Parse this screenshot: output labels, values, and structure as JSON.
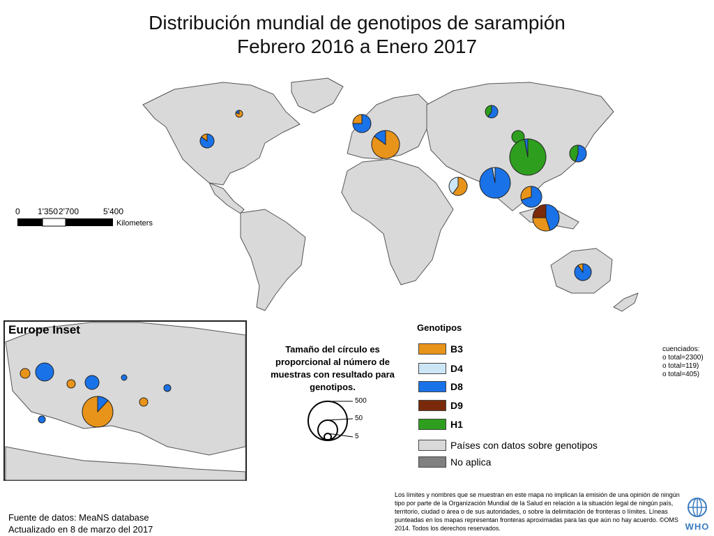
{
  "title": {
    "line1": "Distribución mundial de genotipos de sarampión",
    "line2": "Febrero 2016 a Enero 2017"
  },
  "scale_bar": {
    "ticks": [
      "0",
      "1'350",
      "2'700",
      "5'400"
    ],
    "unit": "Kilometers"
  },
  "inset": {
    "title": "Europe Inset"
  },
  "size_legend": {
    "caption": "Tamaño del círculo es proporcional al número de muestras con resultado para genotipos.",
    "values": [
      "500",
      "50",
      "5"
    ]
  },
  "genotype_legend": {
    "title": "Genotipos",
    "items": [
      {
        "label": "B3",
        "color": "#e8941a"
      },
      {
        "label": "D4",
        "color": "#cce6f6"
      },
      {
        "label": "D8",
        "color": "#1a72e8"
      },
      {
        "label": "D9",
        "color": "#7a2a0a"
      },
      {
        "label": "H1",
        "color": "#2e9e1e"
      }
    ],
    "countries_with_data": {
      "label": "Países con datos sobre genotipos",
      "color": "#d9d9d9"
    },
    "not_applicable": {
      "label": "No aplica",
      "color": "#808080"
    }
  },
  "partial_text": {
    "line1": "cuenciados:",
    "line2": "o total=2300)",
    "line3": "o total=119)",
    "line4": "o total=405)"
  },
  "source": {
    "line1": "Fuente de datos: MeaNS database",
    "line2": "Actualizado en 8 de marzo del 2017"
  },
  "disclaimer": "Los límites y nombres que se muestran en este mapa no implican la emisión de una opinión de ningún tipo por parte de la Organización Mundial de la Salud en relación a la situación legal de ningún país, territorio, ciudad o área o de sus autoridades, o sobre la delimitación de fronteras o límites. Líneas punteadas en los mapas representan fronteras aproximadas para las que aún no hay acuerdo. ©OMS 2014. Todos los derechos reservados.",
  "who_logo": {
    "text": "WHO",
    "icon": "who-emblem-icon"
  },
  "map_pies": [
    {
      "place": "Canada",
      "slices": [
        {
          "genotype": "B3",
          "fraction": 0.8
        },
        {
          "genotype": "D8",
          "fraction": 0.2
        }
      ]
    },
    {
      "place": "United States",
      "slices": [
        {
          "genotype": "D8",
          "fraction": 0.85
        },
        {
          "genotype": "B3",
          "fraction": 0.15
        }
      ]
    },
    {
      "place": "United Kingdom",
      "slices": [
        {
          "genotype": "D8",
          "fraction": 0.75
        },
        {
          "genotype": "B3",
          "fraction": 0.25
        }
      ]
    },
    {
      "place": "Italy",
      "slices": [
        {
          "genotype": "B3",
          "fraction": 0.85
        },
        {
          "genotype": "D8",
          "fraction": 0.15
        }
      ]
    },
    {
      "place": "Russia",
      "slices": [
        {
          "genotype": "D8",
          "fraction": 0.6
        },
        {
          "genotype": "H1",
          "fraction": 0.4
        }
      ]
    },
    {
      "place": "Mongolia",
      "slices": [
        {
          "genotype": "H1",
          "fraction": 1.0
        }
      ]
    },
    {
      "place": "China",
      "slices": [
        {
          "genotype": "H1",
          "fraction": 0.97
        },
        {
          "genotype": "D8",
          "fraction": 0.03
        }
      ]
    },
    {
      "place": "Japan",
      "slices": [
        {
          "genotype": "D8",
          "fraction": 0.55
        },
        {
          "genotype": "H1",
          "fraction": 0.45
        }
      ]
    },
    {
      "place": "India",
      "slices": [
        {
          "genotype": "D8",
          "fraction": 0.97
        },
        {
          "genotype": "D4",
          "fraction": 0.03
        }
      ]
    },
    {
      "place": "Pakistan",
      "slices": [
        {
          "genotype": "B3",
          "fraction": 0.6
        },
        {
          "genotype": "D4",
          "fraction": 0.4
        }
      ]
    },
    {
      "place": "Thailand",
      "slices": [
        {
          "genotype": "D8",
          "fraction": 0.7
        },
        {
          "genotype": "B3",
          "fraction": 0.3
        }
      ]
    },
    {
      "place": "Indonesia",
      "slices": [
        {
          "genotype": "D8",
          "fraction": 0.45
        },
        {
          "genotype": "B3",
          "fraction": 0.3
        },
        {
          "genotype": "D9",
          "fraction": 0.25
        }
      ]
    },
    {
      "place": "Australia",
      "slices": [
        {
          "genotype": "D8",
          "fraction": 0.9
        },
        {
          "genotype": "B3",
          "fraction": 0.1
        }
      ]
    }
  ]
}
